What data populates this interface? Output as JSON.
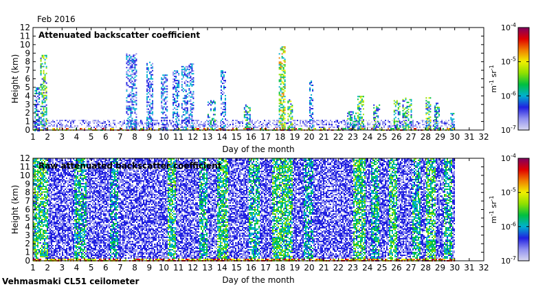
{
  "header": {
    "date_label": "Feb 2016"
  },
  "footer": {
    "instrument_label": "Vehmasmaki CL51 ceilometer"
  },
  "colorscale": {
    "stops": [
      "#d8d8f0",
      "#9090f0",
      "#2020e0",
      "#00b0d0",
      "#00c040",
      "#90e000",
      "#f0f000",
      "#f08000",
      "#e00000",
      "#800060"
    ]
  },
  "chart_data": [
    {
      "type": "heatmap",
      "title": "Attenuated backscatter coefficient",
      "xlabel": "Day of the month",
      "ylabel": "Height (km)",
      "xlim": [
        1,
        32
      ],
      "ylim": [
        0,
        12
      ],
      "x_ticks": [
        "1",
        "2",
        "3",
        "4",
        "5",
        "6",
        "7",
        "8",
        "9",
        "10",
        "11",
        "12",
        "13",
        "14",
        "15",
        "16",
        "17",
        "18",
        "19",
        "20",
        "21",
        "22",
        "23",
        "24",
        "25",
        "26",
        "27",
        "28",
        "29",
        "30",
        "31",
        "32"
      ],
      "y_ticks": [
        "0",
        "1",
        "2",
        "3",
        "4",
        "5",
        "6",
        "7",
        "8",
        "9",
        "10",
        "11",
        "12"
      ],
      "data_end_day": 30,
      "colorbar": {
        "label": "m-1 sr-1",
        "scale": "log",
        "range": [
          1e-07,
          0.0001
        ],
        "ticks": [
          "10-7",
          "10-6",
          "10-5",
          "10-4"
        ]
      },
      "features": [
        {
          "day_start": 1.1,
          "day_end": 1.4,
          "top_km": 5.0,
          "level": 0.35
        },
        {
          "day_start": 1.5,
          "day_end": 1.9,
          "top_km": 8.8,
          "level": 0.5
        },
        {
          "day_start": 7.4,
          "day_end": 8.1,
          "top_km": 9.0,
          "level": 0.3
        },
        {
          "day_start": 8.8,
          "day_end": 9.2,
          "top_km": 8.0,
          "level": 0.3
        },
        {
          "day_start": 9.8,
          "day_end": 10.2,
          "top_km": 6.5,
          "level": 0.3
        },
        {
          "day_start": 10.6,
          "day_end": 11.0,
          "top_km": 7.0,
          "level": 0.3
        },
        {
          "day_start": 11.2,
          "day_end": 11.6,
          "top_km": 7.5,
          "level": 0.3
        },
        {
          "day_start": 11.7,
          "day_end": 12.0,
          "top_km": 7.8,
          "level": 0.3
        },
        {
          "day_start": 13.0,
          "day_end": 13.5,
          "top_km": 3.5,
          "level": 0.4
        },
        {
          "day_start": 13.9,
          "day_end": 14.2,
          "top_km": 7.0,
          "level": 0.3
        },
        {
          "day_start": 15.5,
          "day_end": 15.9,
          "top_km": 3.0,
          "level": 0.4
        },
        {
          "day_start": 17.9,
          "day_end": 18.3,
          "top_km": 9.8,
          "level": 0.6
        },
        {
          "day_start": 18.5,
          "day_end": 18.8,
          "top_km": 3.6,
          "level": 0.5
        },
        {
          "day_start": 20.0,
          "day_end": 20.2,
          "top_km": 5.8,
          "level": 0.3
        },
        {
          "day_start": 22.6,
          "day_end": 23.2,
          "top_km": 2.2,
          "level": 0.4
        },
        {
          "day_start": 23.3,
          "day_end": 23.7,
          "top_km": 4.0,
          "level": 0.5
        },
        {
          "day_start": 24.4,
          "day_end": 24.8,
          "top_km": 3.0,
          "level": 0.4
        },
        {
          "day_start": 25.8,
          "day_end": 26.2,
          "top_km": 3.5,
          "level": 0.45
        },
        {
          "day_start": 26.4,
          "day_end": 27.0,
          "top_km": 3.8,
          "level": 0.45
        },
        {
          "day_start": 28.0,
          "day_end": 28.3,
          "top_km": 4.0,
          "level": 0.5
        },
        {
          "day_start": 28.6,
          "day_end": 28.9,
          "top_km": 3.2,
          "level": 0.4
        },
        {
          "day_start": 29.7,
          "day_end": 29.9,
          "top_km": 2.0,
          "level": 0.35
        }
      ]
    },
    {
      "type": "heatmap",
      "title": "Raw attenuated backscatter coefficient",
      "xlabel": "Day of the month",
      "ylabel": "Height (km)",
      "xlim": [
        1,
        32
      ],
      "ylim": [
        0,
        12
      ],
      "x_ticks": [
        "1",
        "2",
        "3",
        "4",
        "5",
        "6",
        "7",
        "8",
        "9",
        "10",
        "11",
        "12",
        "13",
        "14",
        "15",
        "16",
        "17",
        "18",
        "19",
        "20",
        "21",
        "22",
        "23",
        "24",
        "25",
        "26",
        "27",
        "28",
        "29",
        "30",
        "31",
        "32"
      ],
      "y_ticks": [
        "0",
        "1",
        "2",
        "3",
        "4",
        "5",
        "6",
        "7",
        "8",
        "9",
        "10",
        "11",
        "12"
      ],
      "data_end_day": 30,
      "colorbar": {
        "label": "m-1 sr-1",
        "scale": "log",
        "range": [
          1e-07,
          0.0001
        ],
        "ticks": [
          "10-7",
          "10-6",
          "10-5",
          "10-4"
        ]
      },
      "features": [
        {
          "day_start": 1.0,
          "day_end": 2.0,
          "top_km": 12,
          "level": 0.5
        },
        {
          "day_start": 3.8,
          "day_end": 4.6,
          "top_km": 12,
          "level": 0.45
        },
        {
          "day_start": 6.2,
          "day_end": 6.8,
          "top_km": 12,
          "level": 0.4
        },
        {
          "day_start": 10.2,
          "day_end": 10.8,
          "top_km": 12,
          "level": 0.5
        },
        {
          "day_start": 12.4,
          "day_end": 13.0,
          "top_km": 12,
          "level": 0.45
        },
        {
          "day_start": 13.6,
          "day_end": 14.4,
          "top_km": 12,
          "level": 0.5
        },
        {
          "day_start": 15.8,
          "day_end": 16.5,
          "top_km": 12,
          "level": 0.45
        },
        {
          "day_start": 17.4,
          "day_end": 18.8,
          "top_km": 12,
          "level": 0.5
        },
        {
          "day_start": 19.6,
          "day_end": 20.2,
          "top_km": 12,
          "level": 0.4
        },
        {
          "day_start": 23.0,
          "day_end": 23.8,
          "top_km": 12,
          "level": 0.5
        },
        {
          "day_start": 24.2,
          "day_end": 24.8,
          "top_km": 12,
          "level": 0.45
        },
        {
          "day_start": 25.4,
          "day_end": 26.0,
          "top_km": 12,
          "level": 0.5
        },
        {
          "day_start": 27.0,
          "day_end": 27.6,
          "top_km": 12,
          "level": 0.45
        },
        {
          "day_start": 28.0,
          "day_end": 28.6,
          "top_km": 12,
          "level": 0.5
        },
        {
          "day_start": 29.2,
          "day_end": 29.8,
          "top_km": 12,
          "level": 0.45
        }
      ]
    }
  ]
}
